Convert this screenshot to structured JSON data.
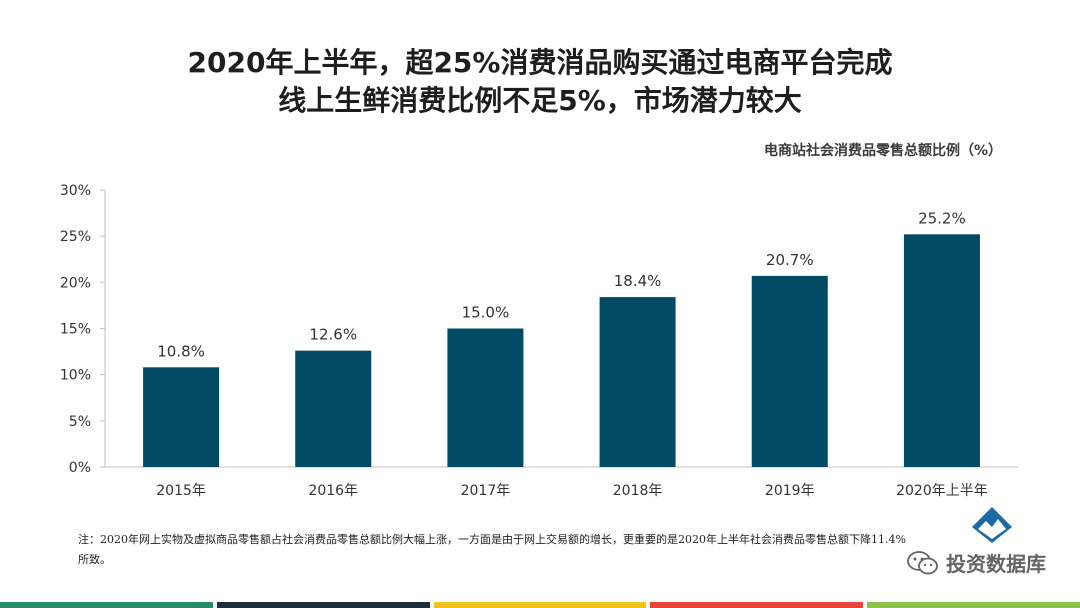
{
  "header": {
    "title_line1": "2020年上半年，超25%消费消品购买通过电商平台完成",
    "title_line2": "线上生鲜消费比例不足5%，市场潜力较大"
  },
  "chart_data": {
    "type": "bar",
    "title": "电商站社会消费品零售总额比例（%）",
    "categories": [
      "2015年",
      "2016年",
      "2017年",
      "2018年",
      "2019年",
      "2020年上半年"
    ],
    "values": [
      10.8,
      12.6,
      15.0,
      18.4,
      20.7,
      25.2
    ],
    "data_labels": [
      "10.8%",
      "12.6%",
      "15.0%",
      "18.4%",
      "20.7%",
      "25.2%"
    ],
    "y_ticks": [
      "0%",
      "5%",
      "10%",
      "15%",
      "20%",
      "25%",
      "30%"
    ],
    "ylim": [
      0,
      30
    ],
    "xlabel": "",
    "ylabel": "",
    "grid": false,
    "bar_color": "#004b63",
    "axis_color": "#bfbfbf"
  },
  "note": {
    "text": "注：2020年网上实物及虚拟商品零售额占社会消费品零售总额比例大幅上涨，一方面是由于网上交易额的增长，更重要的是2020年上半年社会消费品零售总额下降11.4%所致。"
  },
  "watermark": {
    "text": "投资数据库",
    "icon": "wechat-icon"
  },
  "logo": {
    "icon": "mountain-logo-icon",
    "color": "#1b6aa5"
  },
  "footer": {
    "colors": [
      "#2a8a6e",
      "#1f2d3d",
      "#f0c419",
      "#e8453c",
      "#8bc34a"
    ]
  }
}
